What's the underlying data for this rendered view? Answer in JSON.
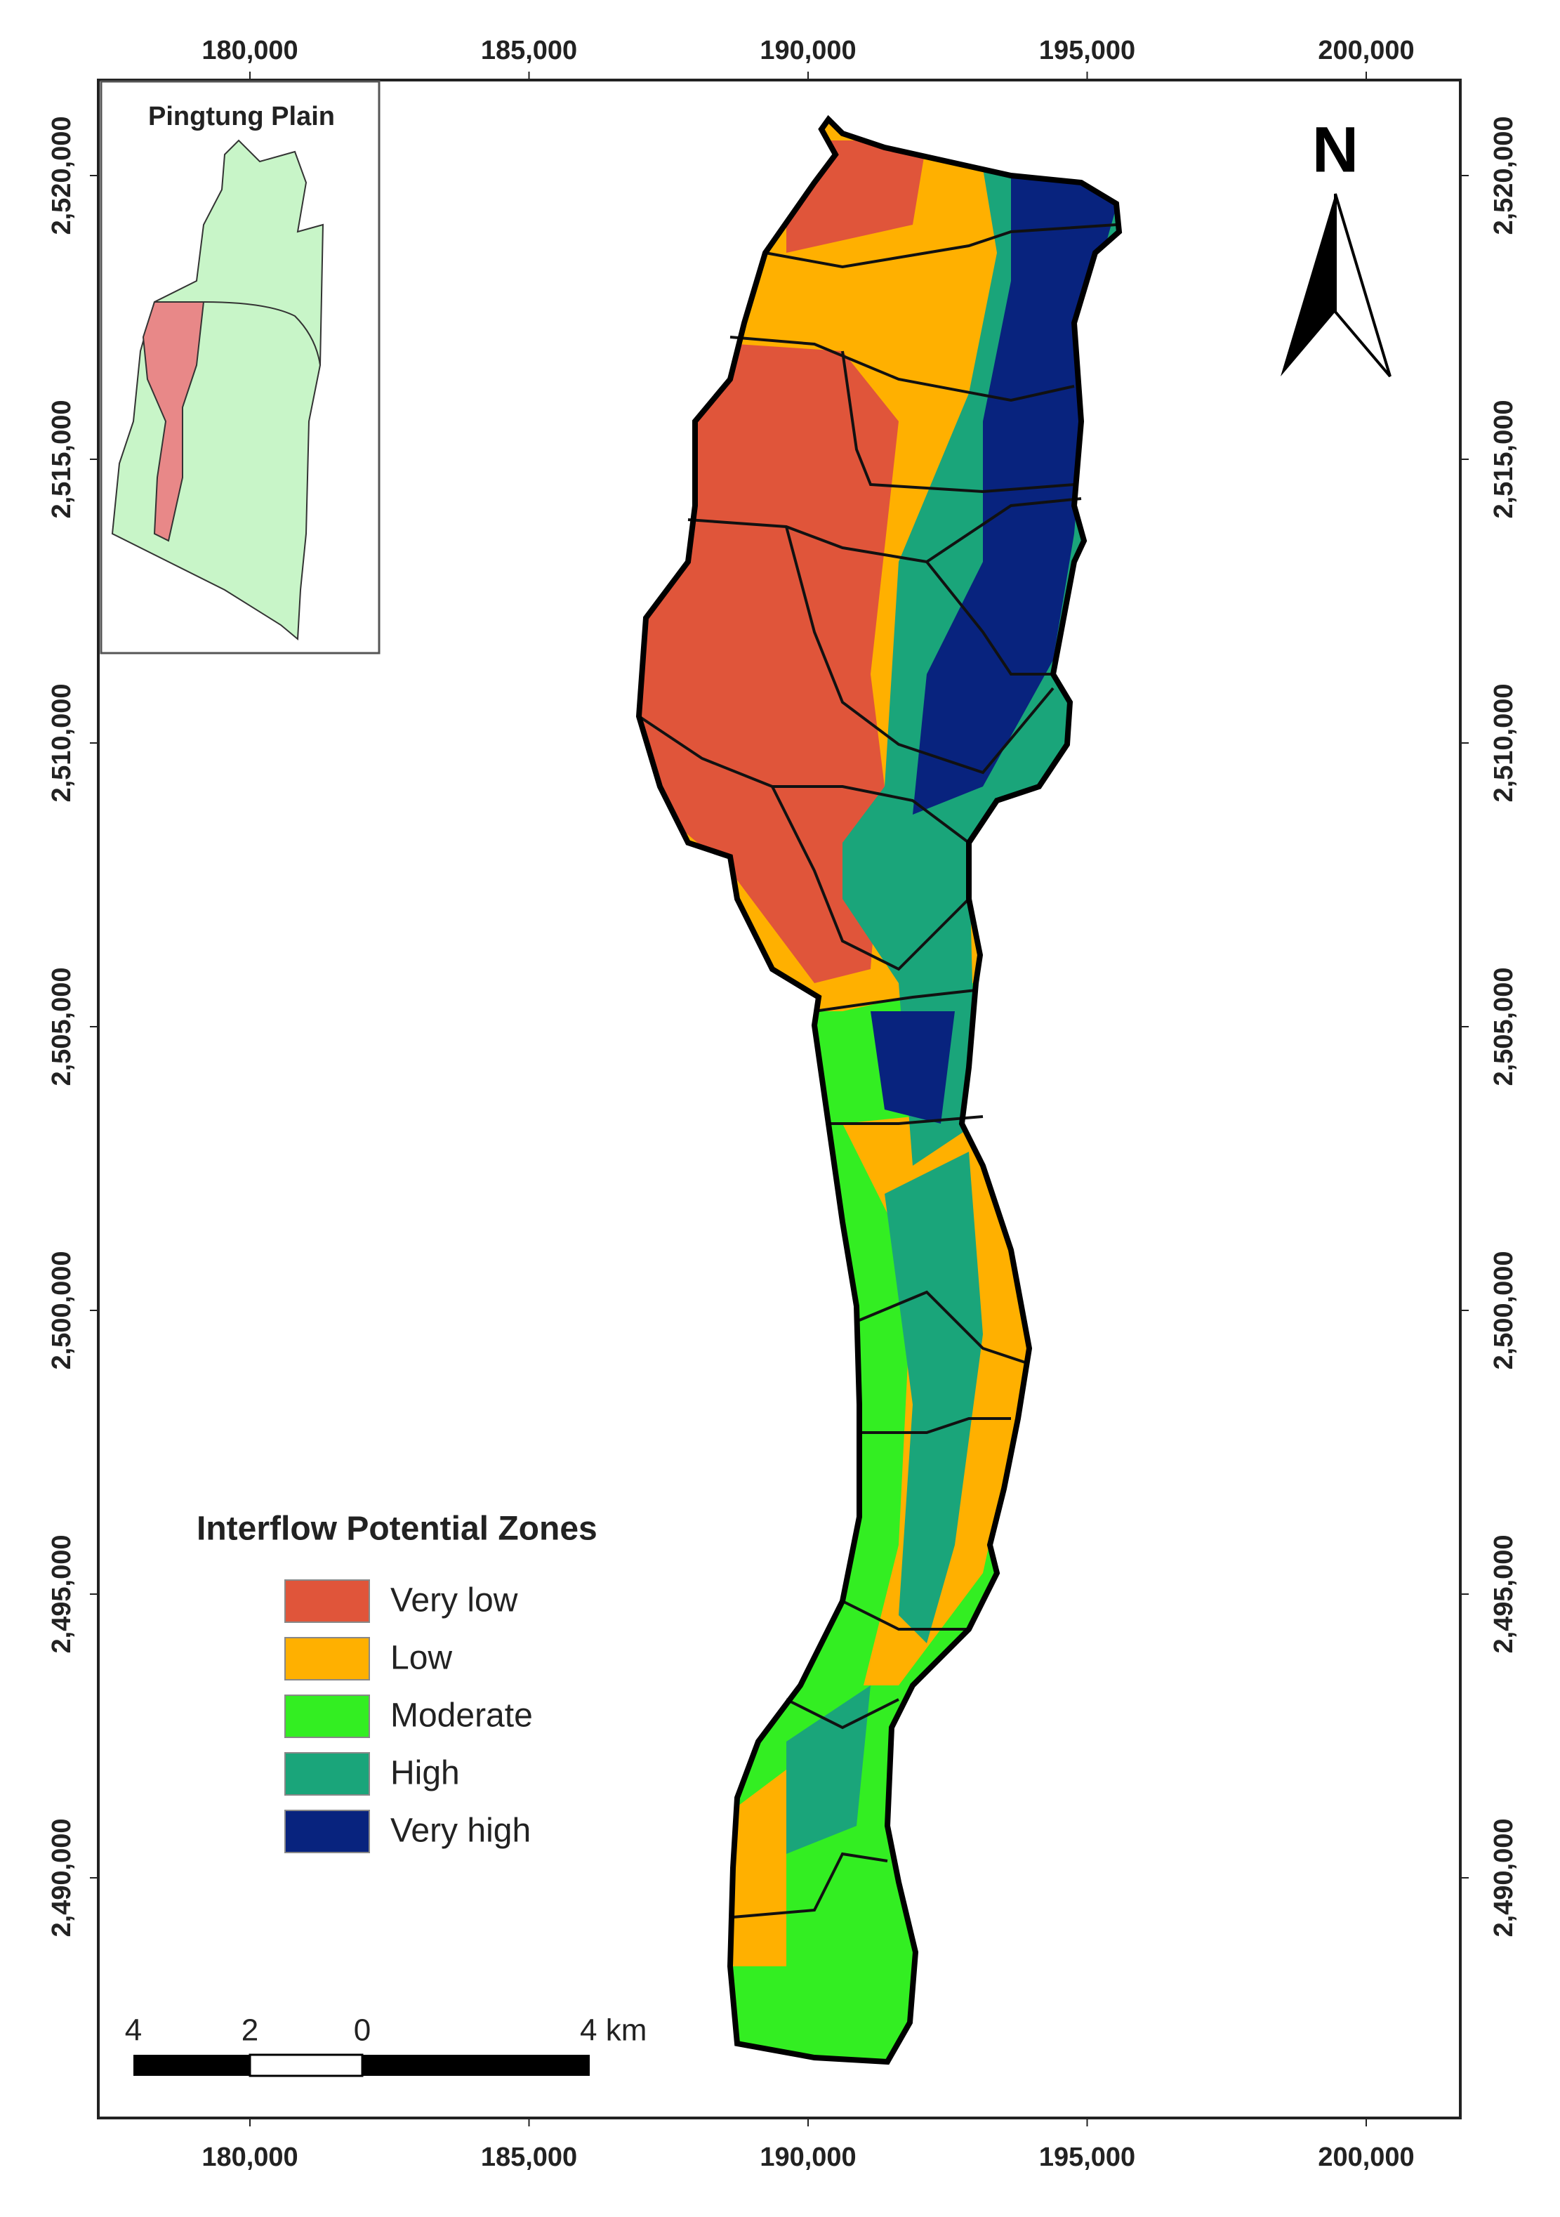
{
  "map": {
    "xticks": [
      {
        "value": 180000,
        "label": "180,000"
      },
      {
        "value": 185000,
        "label": "185,000"
      },
      {
        "value": 190000,
        "label": "190,000"
      },
      {
        "value": 195000,
        "label": "195,000"
      },
      {
        "value": 200000,
        "label": "200,000"
      }
    ],
    "yticks": [
      {
        "value": 2490000,
        "label": "2,490,000"
      },
      {
        "value": 2495000,
        "label": "2,495,000"
      },
      {
        "value": 2500000,
        "label": "2,500,000"
      },
      {
        "value": 2505000,
        "label": "2,505,000"
      },
      {
        "value": 2510000,
        "label": "2,510,000"
      },
      {
        "value": 2515000,
        "label": "2,515,000"
      },
      {
        "value": 2520000,
        "label": "2,520,000"
      }
    ],
    "inset_title": "Pingtung Plain",
    "north": "N",
    "legend": {
      "title": "Interflow Potential Zones",
      "items": [
        {
          "label": "Very low",
          "color": "#e0553a"
        },
        {
          "label": "Low",
          "color": "#ffb000"
        },
        {
          "label": "Moderate",
          "color": "#33ee22"
        },
        {
          "label": "High",
          "color": "#1aa57a"
        },
        {
          "label": "Very high",
          "color": "#08237e"
        }
      ]
    },
    "scale_bar": {
      "labels": [
        "4",
        "2",
        "0",
        "4 km"
      ]
    }
  }
}
